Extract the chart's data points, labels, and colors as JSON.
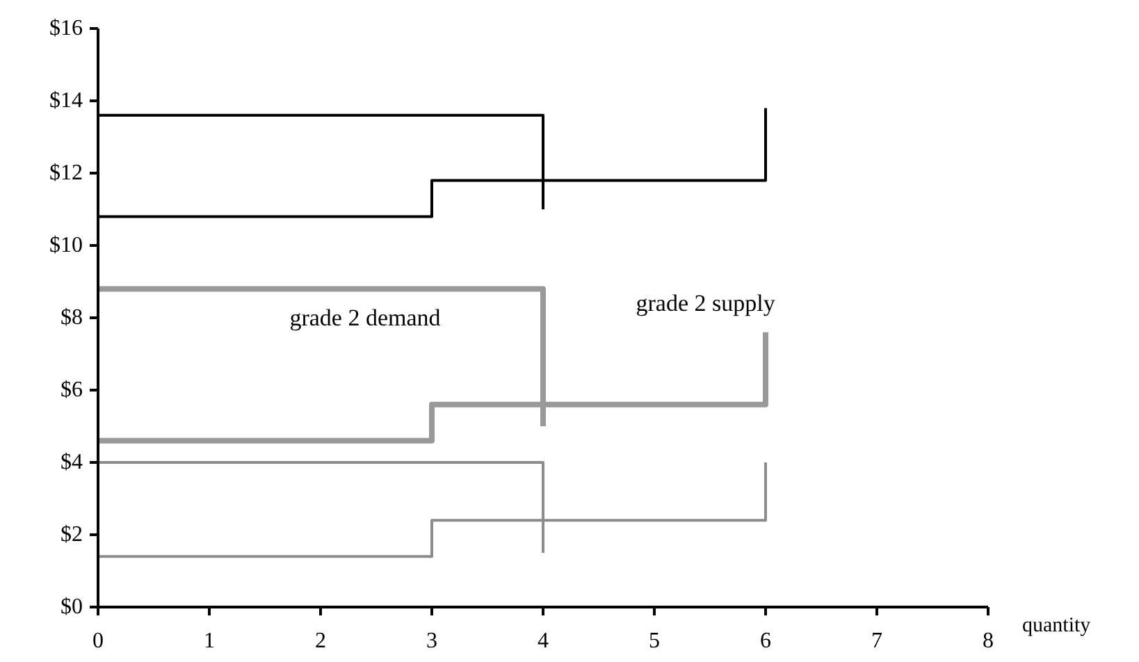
{
  "chart_data": {
    "type": "line",
    "xlabel": "quantity",
    "xlim": [
      0,
      8
    ],
    "xticks": [
      0,
      1,
      2,
      3,
      4,
      5,
      6,
      7,
      8
    ],
    "ylim": [
      0,
      16
    ],
    "yticks": [
      {
        "value": 0,
        "label": "$0"
      },
      {
        "value": 2,
        "label": "$2"
      },
      {
        "value": 4,
        "label": "$4"
      },
      {
        "value": 6,
        "label": "$6"
      },
      {
        "value": 8,
        "label": "$8"
      },
      {
        "value": 10,
        "label": "$10"
      },
      {
        "value": 12,
        "label": "$12"
      },
      {
        "value": 14,
        "label": "$14"
      },
      {
        "value": 16,
        "label": "$16"
      }
    ],
    "grid": false,
    "marker": "none",
    "line_style": "solid",
    "series": [
      {
        "color": "#000000",
        "x": [
          0,
          4,
          4
        ],
        "values": [
          13.6,
          13.6,
          11.0
        ]
      },
      {
        "color": "#000000",
        "x": [
          0,
          3,
          3,
          6,
          6
        ],
        "values": [
          10.8,
          10.8,
          11.8,
          11.8,
          13.8
        ]
      },
      {
        "color": "#999999",
        "x": [
          0,
          4,
          4
        ],
        "values": [
          8.8,
          8.8,
          5.0
        ]
      },
      {
        "color": "#999999",
        "x": [
          0,
          3,
          3,
          6,
          6
        ],
        "values": [
          4.6,
          4.6,
          5.6,
          5.6,
          7.6
        ]
      },
      {
        "color": "#8c8c8c",
        "x": [
          0,
          4,
          4
        ],
        "values": [
          4.0,
          4.0,
          1.5
        ]
      },
      {
        "color": "#8c8c8c",
        "x": [
          0,
          3,
          3,
          6,
          6
        ],
        "values": [
          1.4,
          1.4,
          2.4,
          2.4,
          4.0
        ]
      }
    ],
    "annotations": [
      "grade 2 demand",
      "grade 2 supply"
    ]
  }
}
